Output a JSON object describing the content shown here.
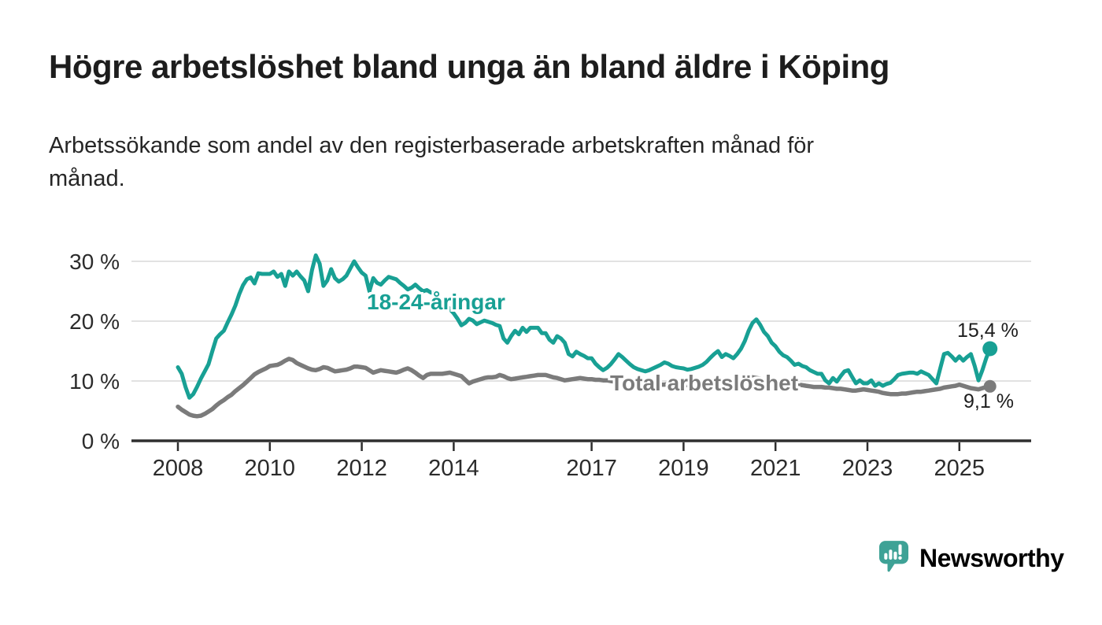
{
  "header": {
    "title": "Högre arbetslöshet bland unga än bland äldre i Köping",
    "subtitle_lines": [
      "Arbetssökande som andel av den registerbaserade arbetskraften månad för",
      "månad."
    ]
  },
  "branding": {
    "logo_text": "Newsworthy",
    "logo_icon": "newsworthy-speech-bubble-bar-chart-icon",
    "brand_color": "#3EA296"
  },
  "chart_data": {
    "type": "line",
    "unit": "%",
    "frequency": "monthly",
    "x_start": "2008-01",
    "x_end": "2025-09",
    "grid": "horizontal",
    "x_axis": {
      "ticks": [
        "2008",
        "2010",
        "2012",
        "2014",
        "2017",
        "2019",
        "2021",
        "2023",
        "2025"
      ],
      "tick_years": [
        2008,
        2010,
        2012,
        2014,
        2017,
        2019,
        2021,
        2023,
        2025
      ]
    },
    "y_axis": {
      "ticks": [
        "0 %",
        "10 %",
        "20 %",
        "30 %"
      ],
      "tick_values": [
        0,
        10,
        20,
        30
      ],
      "range": [
        0,
        33
      ]
    },
    "colors": {
      "grid": "#d8d8d8",
      "axis": "#2e2e2e",
      "label_text": "#1d1d1d"
    },
    "series": [
      {
        "name": "18-24-åringar",
        "color": "#18A094",
        "end_label": "15,4 %",
        "end_value": 15.4,
        "values": [
          12.3,
          11.2,
          9.0,
          7.2,
          7.8,
          9.0,
          10.4,
          11.6,
          12.8,
          15.0,
          17.1,
          17.8,
          18.4,
          19.8,
          21.1,
          22.6,
          24.5,
          26.0,
          27.0,
          27.3,
          26.3,
          28.0,
          27.9,
          27.9,
          27.9,
          28.3,
          27.4,
          27.9,
          25.9,
          28.3,
          27.6,
          28.3,
          27.5,
          26.8,
          25.0,
          28.5,
          31.0,
          29.6,
          25.9,
          26.8,
          28.7,
          27.2,
          26.6,
          27.0,
          27.6,
          28.8,
          30.0,
          29.0,
          28.1,
          27.6,
          25.0,
          27.2,
          26.4,
          26.1,
          26.8,
          27.4,
          27.2,
          27.0,
          26.4,
          25.9,
          25.3,
          25.6,
          26.1,
          25.5,
          25.0,
          25.2,
          24.8,
          24.6,
          24.2,
          23.5,
          22.8,
          22.0,
          21.3,
          20.4,
          19.3,
          19.7,
          20.4,
          20.1,
          19.5,
          19.8,
          20.1,
          19.9,
          19.7,
          19.4,
          19.2,
          17.1,
          16.4,
          17.5,
          18.4,
          17.8,
          18.9,
          18.2,
          18.9,
          18.9,
          18.9,
          18.0,
          18.0,
          16.9,
          16.4,
          17.5,
          17.1,
          16.4,
          14.5,
          14.1,
          14.9,
          14.5,
          14.2,
          13.8,
          13.8,
          12.9,
          12.3,
          11.8,
          12.2,
          12.8,
          13.6,
          14.5,
          14.0,
          13.4,
          12.8,
          12.3,
          12.0,
          11.8,
          11.6,
          11.8,
          12.1,
          12.4,
          12.7,
          13.1,
          12.9,
          12.5,
          12.3,
          12.2,
          12.1,
          11.9,
          12.0,
          12.2,
          12.4,
          12.7,
          13.2,
          13.9,
          14.5,
          15.0,
          14.0,
          14.5,
          14.2,
          13.8,
          14.5,
          15.4,
          16.7,
          18.4,
          19.7,
          20.3,
          19.4,
          18.2,
          17.5,
          16.4,
          15.8,
          14.9,
          14.3,
          14.0,
          13.4,
          12.7,
          12.9,
          12.5,
          12.3,
          11.8,
          11.5,
          11.2,
          11.2,
          10.1,
          9.6,
          10.5,
          9.9,
          10.8,
          11.6,
          11.8,
          10.7,
          9.6,
          10.1,
          9.6,
          9.6,
          10.1,
          9.2,
          9.6,
          9.2,
          9.5,
          9.7,
          10.3,
          11.0,
          11.2,
          11.3,
          11.4,
          11.4,
          11.2,
          11.6,
          11.3,
          11.0,
          10.3,
          9.6,
          12.1,
          14.5,
          14.7,
          14.1,
          13.4,
          14.1,
          13.4,
          14.0,
          14.5,
          12.5,
          10.1,
          11.8,
          13.8,
          15.4
        ]
      },
      {
        "name": "Total arbetslöshet",
        "color": "#7B7B7B",
        "end_label": "9,1 %",
        "end_value": 9.1,
        "values": [
          5.7,
          5.2,
          4.8,
          4.4,
          4.2,
          4.1,
          4.2,
          4.5,
          4.9,
          5.3,
          5.9,
          6.4,
          6.8,
          7.3,
          7.7,
          8.3,
          8.8,
          9.3,
          9.9,
          10.5,
          11.1,
          11.5,
          11.8,
          12.1,
          12.5,
          12.6,
          12.7,
          13.0,
          13.4,
          13.7,
          13.5,
          13.0,
          12.7,
          12.4,
          12.1,
          11.9,
          11.8,
          12.0,
          12.3,
          12.2,
          11.9,
          11.6,
          11.7,
          11.8,
          11.9,
          12.1,
          12.4,
          12.4,
          12.3,
          12.2,
          11.8,
          11.4,
          11.6,
          11.8,
          11.7,
          11.6,
          11.5,
          11.4,
          11.6,
          11.9,
          12.1,
          11.8,
          11.4,
          10.9,
          10.5,
          11.0,
          11.2,
          11.2,
          11.2,
          11.2,
          11.3,
          11.4,
          11.2,
          11.0,
          10.8,
          10.2,
          9.6,
          9.9,
          10.1,
          10.3,
          10.5,
          10.6,
          10.6,
          10.7,
          11.0,
          10.8,
          10.5,
          10.3,
          10.4,
          10.5,
          10.6,
          10.7,
          10.8,
          10.9,
          11.0,
          11.0,
          11.0,
          10.8,
          10.6,
          10.5,
          10.3,
          10.1,
          10.2,
          10.3,
          10.4,
          10.5,
          10.4,
          10.3,
          10.3,
          10.2,
          10.2,
          10.1,
          10.1,
          10.0,
          9.9,
          9.9,
          9.8,
          9.7,
          9.6,
          9.6,
          9.5,
          9.5,
          9.4,
          9.4,
          9.3,
          9.3,
          9.4,
          9.4,
          9.5,
          9.5,
          9.4,
          9.4,
          9.4,
          9.3,
          9.3,
          9.2,
          9.2,
          9.3,
          9.4,
          9.5,
          9.5,
          9.6,
          9.7,
          9.8,
          9.9,
          9.9,
          10.1,
          10.4,
          10.6,
          10.7,
          10.6,
          10.5,
          10.4,
          10.3,
          10.2,
          10.1,
          10.0,
          9.9,
          9.8,
          9.7,
          9.6,
          9.5,
          9.4,
          9.3,
          9.2,
          9.1,
          9.0,
          9.0,
          9.0,
          8.9,
          8.9,
          8.8,
          8.7,
          8.7,
          8.6,
          8.5,
          8.4,
          8.4,
          8.5,
          8.6,
          8.5,
          8.4,
          8.3,
          8.2,
          8.0,
          7.9,
          7.8,
          7.8,
          7.8,
          7.9,
          7.9,
          8.0,
          8.1,
          8.2,
          8.2,
          8.3,
          8.4,
          8.5,
          8.6,
          8.7,
          8.9,
          9.0,
          9.1,
          9.2,
          9.4,
          9.2,
          9.0,
          8.8,
          8.7,
          8.6,
          8.8,
          9.0,
          9.1
        ]
      }
    ]
  }
}
